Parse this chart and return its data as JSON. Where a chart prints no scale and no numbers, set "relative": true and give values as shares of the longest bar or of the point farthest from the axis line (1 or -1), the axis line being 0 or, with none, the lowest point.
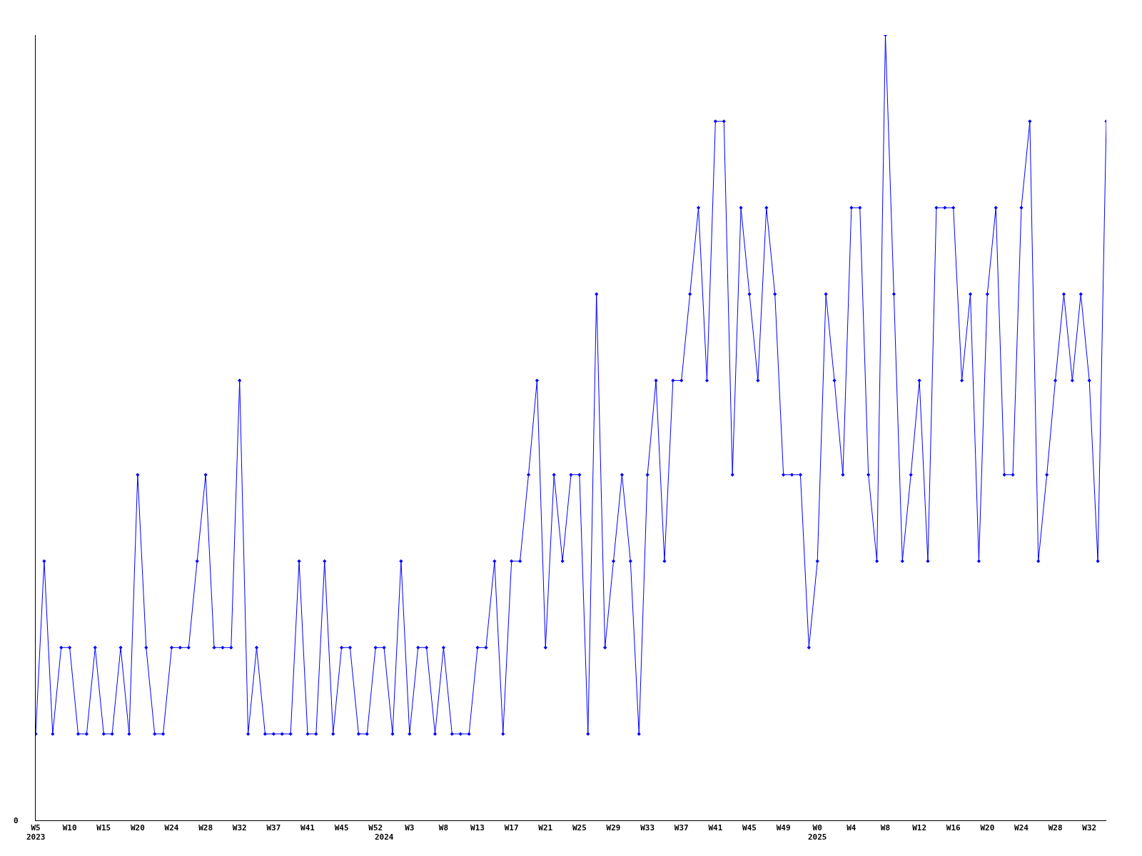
{
  "chart_data": {
    "type": "line",
    "relative": true,
    "color": "#0000ff",
    "marker": "diamond",
    "legend": false,
    "annotations": [
      "0"
    ],
    "categories": [
      "W5\n2023",
      null,
      null,
      null,
      "W10",
      null,
      null,
      null,
      "W15",
      null,
      null,
      null,
      "W20",
      null,
      null,
      null,
      "W24",
      null,
      null,
      null,
      "W28",
      null,
      null,
      null,
      "W32",
      null,
      null,
      null,
      "W37",
      null,
      null,
      null,
      "W41",
      null,
      null,
      null,
      "W45",
      null,
      null,
      null,
      "W52",
      "\n2024",
      null,
      null,
      "W3",
      null,
      null,
      null,
      "W8",
      null,
      null,
      null,
      "W13",
      null,
      null,
      null,
      "W17",
      null,
      null,
      null,
      "W21",
      null,
      null,
      null,
      "W25",
      null,
      null,
      null,
      "W29",
      null,
      null,
      null,
      "W33",
      null,
      null,
      null,
      "W37",
      null,
      null,
      null,
      "W41",
      null,
      null,
      null,
      "W45",
      null,
      null,
      null,
      "W49",
      null,
      null,
      null,
      "W0\n2025",
      null,
      null,
      null,
      "W4",
      null,
      null,
      null,
      "W8",
      null,
      null,
      null,
      "W12",
      null,
      null,
      null,
      "W16",
      null,
      null,
      null,
      "W20",
      null,
      null,
      null,
      "W24",
      null,
      null,
      null,
      "W28",
      null,
      null,
      null,
      "W32",
      null,
      null
    ],
    "values": [
      0.11,
      0.33,
      0.11,
      0.22,
      0.22,
      0.11,
      0.11,
      0.22,
      0.11,
      0.11,
      0.22,
      0.11,
      0.44,
      0.22,
      0.11,
      0.11,
      0.22,
      0.22,
      0.22,
      0.33,
      0.44,
      0.22,
      0.22,
      0.22,
      0.56,
      0.11,
      0.22,
      0.11,
      0.11,
      0.11,
      0.11,
      0.33,
      0.11,
      0.11,
      0.33,
      0.11,
      0.22,
      0.22,
      0.11,
      0.11,
      0.22,
      0.22,
      0.11,
      0.33,
      0.11,
      0.22,
      0.22,
      0.11,
      0.22,
      0.11,
      0.11,
      0.11,
      0.22,
      0.22,
      0.33,
      0.11,
      0.33,
      0.33,
      0.44,
      0.56,
      0.22,
      0.44,
      0.33,
      0.44,
      0.44,
      0.11,
      0.67,
      0.22,
      0.33,
      0.44,
      0.33,
      0.11,
      0.44,
      0.56,
      0.33,
      0.56,
      0.56,
      0.67,
      0.78,
      0.56,
      0.89,
      0.89,
      0.44,
      0.78,
      0.67,
      0.56,
      0.78,
      0.67,
      0.44,
      0.44,
      0.44,
      0.22,
      0.33,
      0.67,
      0.56,
      0.44,
      0.78,
      0.78,
      0.44,
      0.33,
      1,
      0.67,
      0.33,
      0.44,
      0.56,
      0.33,
      0.78,
      0.78,
      0.78,
      0.56,
      0.67,
      0.33,
      0.67,
      0.78,
      0.44,
      0.44,
      0.78,
      0.89,
      0.33,
      0.44,
      0.56,
      0.67,
      0.56,
      0.67,
      0.56,
      0.33,
      0.89
    ]
  }
}
